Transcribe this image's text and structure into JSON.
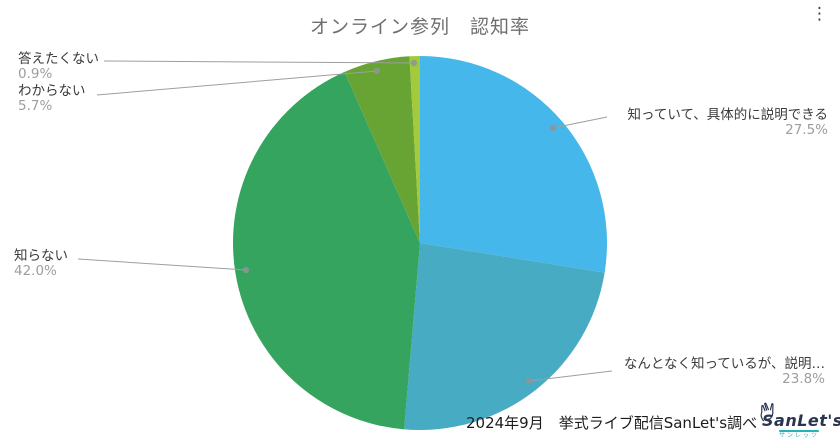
{
  "header": {
    "title": "オンライン参列　認知率"
  },
  "icons": {
    "more_options": "⋮"
  },
  "chart_data": {
    "type": "pie",
    "title": "オンライン参列　認知率",
    "labels": [
      "知っていて、具体的に説明できる",
      "なんとなく知っているが、説明…",
      "知らない",
      "わからない",
      "答えたくない"
    ],
    "values": [
      27.5,
      23.8,
      42.0,
      5.7,
      0.9
    ],
    "display_percents": [
      "27.5%",
      "23.8%",
      "42.0%",
      "5.7%",
      "0.9%"
    ],
    "colors": [
      "#45b7ea",
      "#47abc3",
      "#35a45e",
      "#68a433",
      "#a2ca3a"
    ],
    "start_angle_deg": 0,
    "direction": "clockwise",
    "legend_position": "callout-labels",
    "source_note": "2024年9月　挙式ライブ配信SanLet's調べ"
  },
  "callouts": {
    "know_explain": {
      "text": "知っていて、具体的に説明できる",
      "pct": "27.5%"
    },
    "somewhat": {
      "text": "なんとなく知っているが、説明…",
      "pct": "23.8%"
    },
    "dont_know": {
      "text": "知らない",
      "pct": "42.0%"
    },
    "unsure": {
      "text": "わからない",
      "pct": "5.7%"
    },
    "no_answer": {
      "text": "答えたくない",
      "pct": "0.9%"
    }
  },
  "footer": {
    "source": "2024年9月　挙式ライブ配信SanLet's調べ"
  },
  "logo": {
    "name": "SanLet's",
    "subtext": "サンレッツ"
  }
}
